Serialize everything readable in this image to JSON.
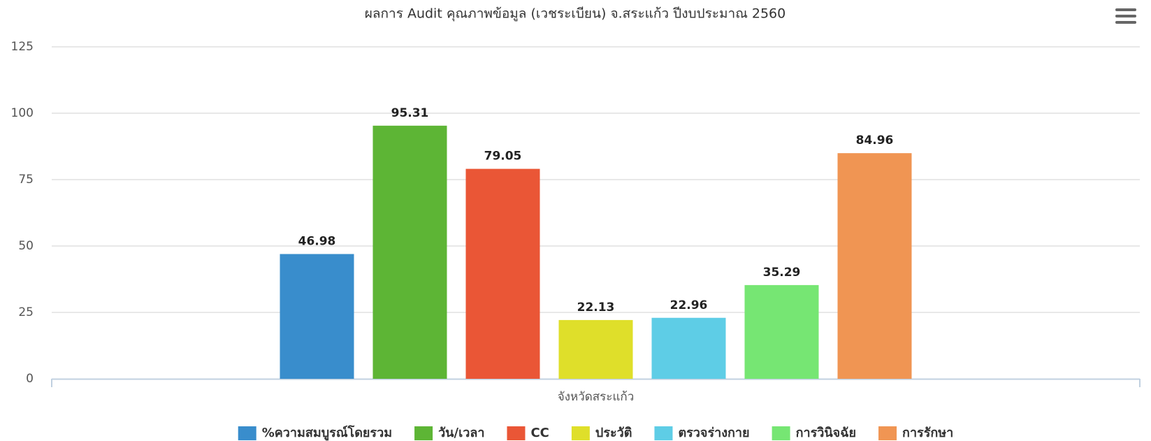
{
  "chart_data": {
    "type": "bar",
    "title": "ผลการ Audit คุณภาพข้อมูล (เวชระเบียน) จ.สระแก้ว ปีงบประมาณ 2560",
    "categories": [
      "จังหวัดสระแก้ว"
    ],
    "series": [
      {
        "name": "%ความสมบูรณ์โดยรวม",
        "color": "#398dcc",
        "values": [
          46.98
        ]
      },
      {
        "name": "วัน/เวลา",
        "color": "#5db535",
        "values": [
          95.31
        ]
      },
      {
        "name": "CC",
        "color": "#ea5636",
        "values": [
          79.05
        ]
      },
      {
        "name": "ประวัติ",
        "color": "#dfdf2a",
        "values": [
          22.13
        ]
      },
      {
        "name": "ตรวจร่างกาย",
        "color": "#5ecde6",
        "values": [
          22.96
        ]
      },
      {
        "name": "การวินิจฉัย",
        "color": "#76e673",
        "values": [
          35.29
        ]
      },
      {
        "name": "การรักษา",
        "color": "#f09553",
        "values": [
          84.96
        ]
      }
    ],
    "ylim": [
      0,
      125
    ],
    "yticks": [
      0,
      25,
      50,
      75,
      100,
      125
    ],
    "grid": true,
    "legend": "bottom"
  }
}
